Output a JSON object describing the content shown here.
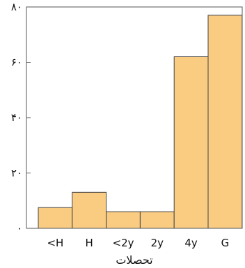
{
  "chart_data": {
    "type": "bar",
    "categories": [
      "<H",
      "H",
      "<2y",
      "2y",
      "4y",
      "G"
    ],
    "values": [
      7.5,
      13,
      6,
      6,
      62,
      77
    ],
    "xlabel": "تحصلات",
    "ylabel": "",
    "ylim": [
      0,
      80
    ],
    "y_ticks": [
      0,
      20,
      40,
      60,
      80
    ],
    "y_tick_labels": [
      "۰",
      "۲۰",
      "۴۰",
      "۶۰",
      "۸۰"
    ],
    "grid": false,
    "bar_color": "#F9CC82",
    "bar_edge_color": "#444444"
  }
}
